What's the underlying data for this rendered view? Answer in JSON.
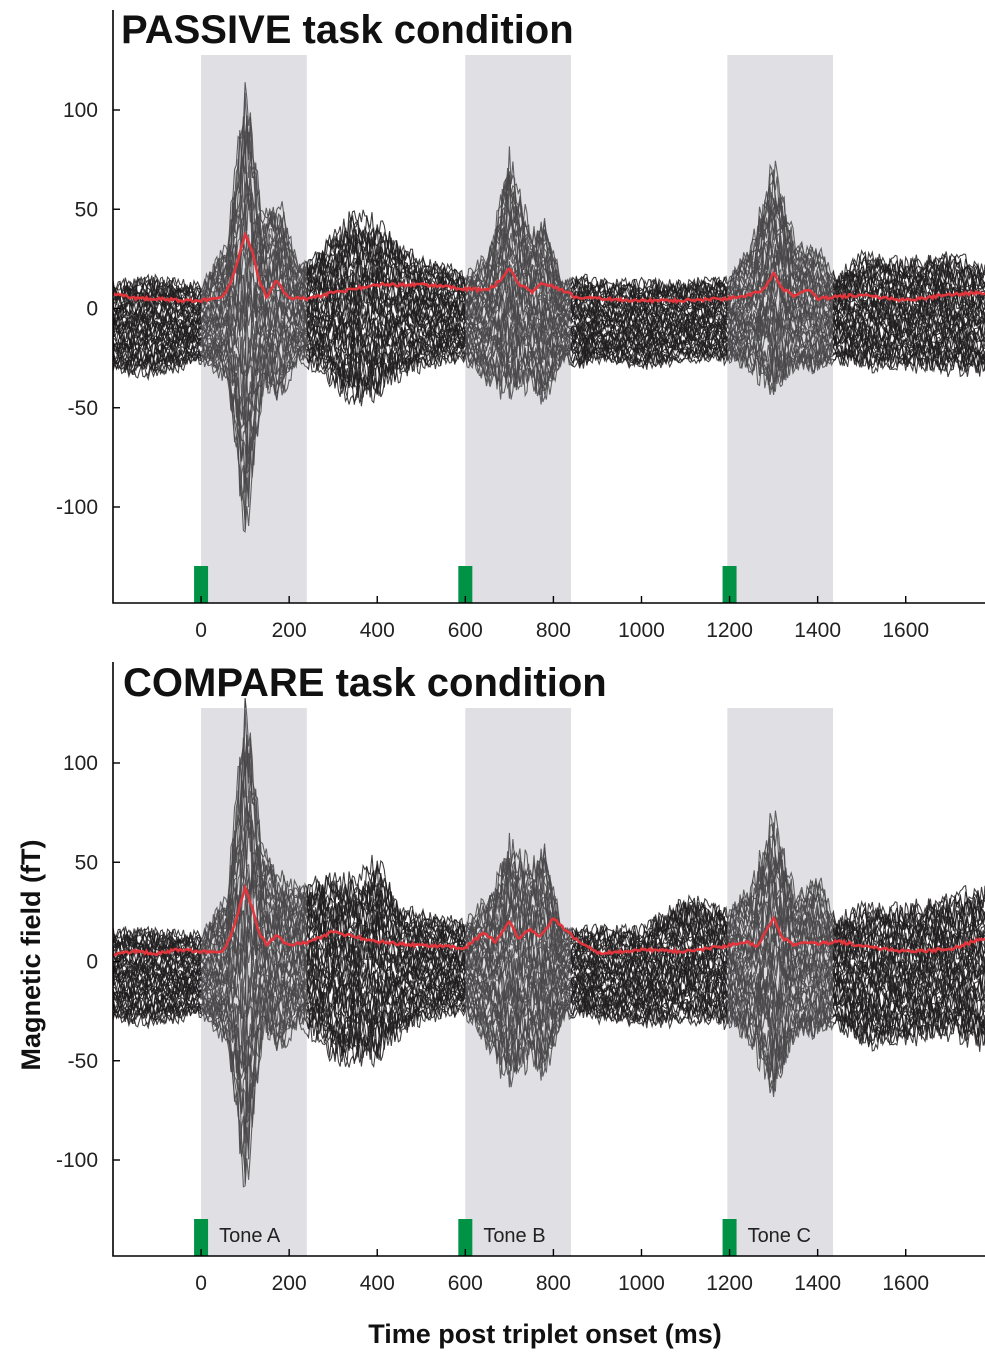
{
  "figure": {
    "ylabel": "Magnetic field (fT)",
    "xlabel": "Time post triplet onset (ms)"
  },
  "chart_data": [
    {
      "type": "line",
      "title": "PASSIVE task condition",
      "xlabel": "Time post triplet onset (ms)",
      "ylabel": "Magnetic field (fT)",
      "xlim": [
        -200,
        1780
      ],
      "ylim": [
        -148,
        125
      ],
      "xticks": [
        0,
        200,
        400,
        600,
        800,
        1000,
        1200,
        1400,
        1600
      ],
      "yticks": [
        -100,
        -50,
        0,
        50,
        100
      ],
      "grid": false,
      "shaded_windows": [
        [
          0,
          240
        ],
        [
          600,
          840
        ],
        [
          1195,
          1435
        ]
      ],
      "stimulus_onsets_ms": [
        0,
        600,
        1200
      ],
      "tone_labels": [],
      "sensor_envelope": {
        "time": [
          -200,
          -100,
          0,
          60,
          100,
          140,
          180,
          220,
          260,
          300,
          350,
          400,
          450,
          500,
          560,
          600,
          650,
          700,
          750,
          780,
          820,
          860,
          900,
          1000,
          1100,
          1200,
          1250,
          1300,
          1350,
          1400,
          1440,
          1500,
          1600,
          1700,
          1780
        ],
        "upper": [
          12,
          14,
          10,
          30,
          106,
          45,
          50,
          20,
          25,
          35,
          45,
          40,
          30,
          22,
          20,
          15,
          25,
          72,
          35,
          42,
          12,
          15,
          12,
          12,
          12,
          15,
          30,
          70,
          30,
          28,
          15,
          25,
          22,
          25,
          20
        ],
        "lower": [
          -30,
          -32,
          -25,
          -35,
          -106,
          -40,
          -42,
          -25,
          -28,
          -35,
          -45,
          -40,
          -32,
          -28,
          -25,
          -25,
          -35,
          -40,
          -35,
          -45,
          -25,
          -28,
          -25,
          -28,
          -25,
          -25,
          -30,
          -40,
          -28,
          -30,
          -25,
          -28,
          -28,
          -30,
          -30
        ]
      },
      "series": [
        {
          "x": [
            -200,
            -150,
            -100,
            -50,
            0,
            50,
            70,
            85,
            100,
            115,
            130,
            150,
            170,
            200,
            250,
            300,
            400,
            500,
            600,
            650,
            680,
            700,
            720,
            750,
            770,
            790,
            850,
            900,
            1000,
            1100,
            1200,
            1250,
            1280,
            1300,
            1320,
            1350,
            1380,
            1400,
            1450,
            1500,
            1600,
            1700,
            1780
          ],
          "y": [
            8,
            5,
            5,
            4,
            4,
            6,
            15,
            25,
            37,
            30,
            15,
            5,
            14,
            5,
            5,
            8,
            12,
            12,
            10,
            9,
            14,
            20,
            13,
            8,
            12,
            12,
            6,
            5,
            4,
            4,
            5,
            7,
            10,
            18,
            10,
            6,
            10,
            5,
            6,
            7,
            4,
            7,
            8
          ]
        }
      ]
    },
    {
      "type": "line",
      "title": "COMPARE task condition",
      "xlabel": "Time post triplet onset (ms)",
      "ylabel": "Magnetic field (fT)",
      "xlim": [
        -200,
        1780
      ],
      "ylim": [
        -148,
        125
      ],
      "xticks": [
        0,
        200,
        400,
        600,
        800,
        1000,
        1200,
        1400,
        1600
      ],
      "yticks": [
        -100,
        -50,
        0,
        50,
        100
      ],
      "grid": false,
      "shaded_windows": [
        [
          0,
          240
        ],
        [
          600,
          840
        ],
        [
          1195,
          1435
        ]
      ],
      "stimulus_onsets_ms": [
        0,
        600,
        1200
      ],
      "tone_labels": [
        "Tone A",
        "Tone B",
        "Tone C"
      ],
      "sensor_envelope": {
        "time": [
          -200,
          -100,
          0,
          60,
          100,
          140,
          180,
          220,
          260,
          300,
          350,
          400,
          450,
          500,
          560,
          600,
          650,
          700,
          750,
          780,
          820,
          860,
          900,
          1000,
          1100,
          1200,
          1250,
          1300,
          1350,
          1400,
          1440,
          1500,
          1600,
          1700,
          1780
        ],
        "upper": [
          15,
          14,
          12,
          30,
          124,
          55,
          40,
          35,
          38,
          40,
          38,
          48,
          25,
          22,
          20,
          18,
          30,
          55,
          45,
          55,
          15,
          15,
          15,
          15,
          30,
          25,
          35,
          70,
          30,
          40,
          20,
          25,
          25,
          30,
          35
        ],
        "lower": [
          -28,
          -30,
          -25,
          -40,
          -106,
          -35,
          -42,
          -30,
          -35,
          -45,
          -48,
          -45,
          -35,
          -28,
          -25,
          -25,
          -40,
          -58,
          -45,
          -55,
          -28,
          -25,
          -28,
          -30,
          -28,
          -30,
          -40,
          -64,
          -35,
          -35,
          -30,
          -40,
          -38,
          -35,
          -40
        ]
      },
      "series": [
        {
          "x": [
            -200,
            -150,
            -100,
            -50,
            0,
            50,
            70,
            85,
            100,
            115,
            130,
            150,
            170,
            200,
            250,
            300,
            400,
            500,
            600,
            640,
            670,
            700,
            720,
            750,
            770,
            800,
            830,
            900,
            1000,
            1100,
            1200,
            1240,
            1260,
            1280,
            1300,
            1320,
            1350,
            1380,
            1400,
            1450,
            1500,
            1600,
            1700,
            1780
          ],
          "y": [
            4,
            5,
            4,
            6,
            5,
            5,
            15,
            25,
            37,
            28,
            15,
            8,
            13,
            8,
            10,
            15,
            10,
            8,
            7,
            14,
            10,
            20,
            12,
            16,
            12,
            22,
            15,
            4,
            6,
            5,
            8,
            10,
            7,
            14,
            22,
            12,
            8,
            10,
            9,
            10,
            8,
            5,
            6,
            12
          ]
        }
      ]
    }
  ]
}
